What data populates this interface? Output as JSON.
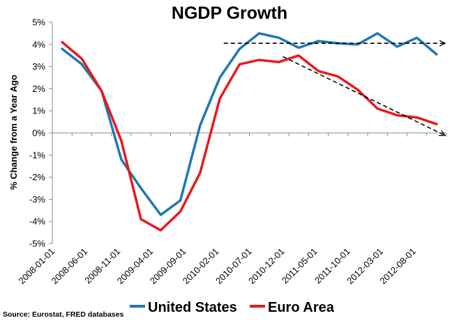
{
  "chart_data": {
    "type": "line",
    "title": "NGDP Growth",
    "ylabel": "% Change from a Year Ago",
    "xlabel": "",
    "ylim": [
      -5,
      5
    ],
    "yticks": [
      -5,
      -4,
      -3,
      -2,
      -1,
      0,
      1,
      2,
      3,
      4,
      5
    ],
    "ytick_labels": [
      "-5%",
      "-4%",
      "-3%",
      "-2%",
      "-1%",
      "0%",
      "1%",
      "2%",
      "3%",
      "4%",
      "5%"
    ],
    "x": [
      "2008-01-01",
      "2008-04-01",
      "2008-07-01",
      "2008-10-01",
      "2009-01-01",
      "2009-04-01",
      "2009-07-01",
      "2009-10-01",
      "2010-01-01",
      "2010-04-01",
      "2010-07-01",
      "2010-10-01",
      "2011-01-01",
      "2011-04-01",
      "2011-07-01",
      "2011-10-01",
      "2012-01-01",
      "2012-04-01",
      "2012-07-01",
      "2012-10-01"
    ],
    "xtick_labels": [
      "2008-01-01",
      "2008-06-01",
      "2008-11-01",
      "2009-04-01",
      "2009-09-01",
      "2010-02-01",
      "2010-07-01",
      "2010-12-01",
      "2011-05-01",
      "2011-10-01",
      "2012-03-01",
      "2012-08-01"
    ],
    "series": [
      {
        "name": "United States",
        "color": "#1f77b4",
        "values": [
          3.8,
          3.1,
          1.9,
          -1.2,
          -2.5,
          -3.7,
          -3.05,
          0.35,
          2.5,
          3.8,
          4.5,
          4.3,
          3.85,
          4.15,
          4.05,
          4.0,
          4.5,
          3.9,
          4.3,
          3.55
        ]
      },
      {
        "name": "Euro Area",
        "color": "#e8191b",
        "values": [
          4.1,
          3.35,
          1.9,
          -0.35,
          -3.9,
          -4.4,
          -3.55,
          -1.8,
          1.55,
          3.1,
          3.3,
          3.2,
          3.5,
          2.8,
          2.55,
          1.95,
          1.1,
          0.8,
          0.7,
          0.4
        ]
      }
    ],
    "trend_lines": [
      {
        "name": "us-trend",
        "start": [
          8.2,
          4.05
        ],
        "end": [
          19.4,
          4.05
        ]
      },
      {
        "name": "euro-trend",
        "start": [
          11.2,
          3.45
        ],
        "end": [
          19.4,
          -0.1
        ]
      }
    ],
    "legend": {
      "position": "bottom"
    },
    "source": "Source: Eurostat, FRED databases"
  }
}
